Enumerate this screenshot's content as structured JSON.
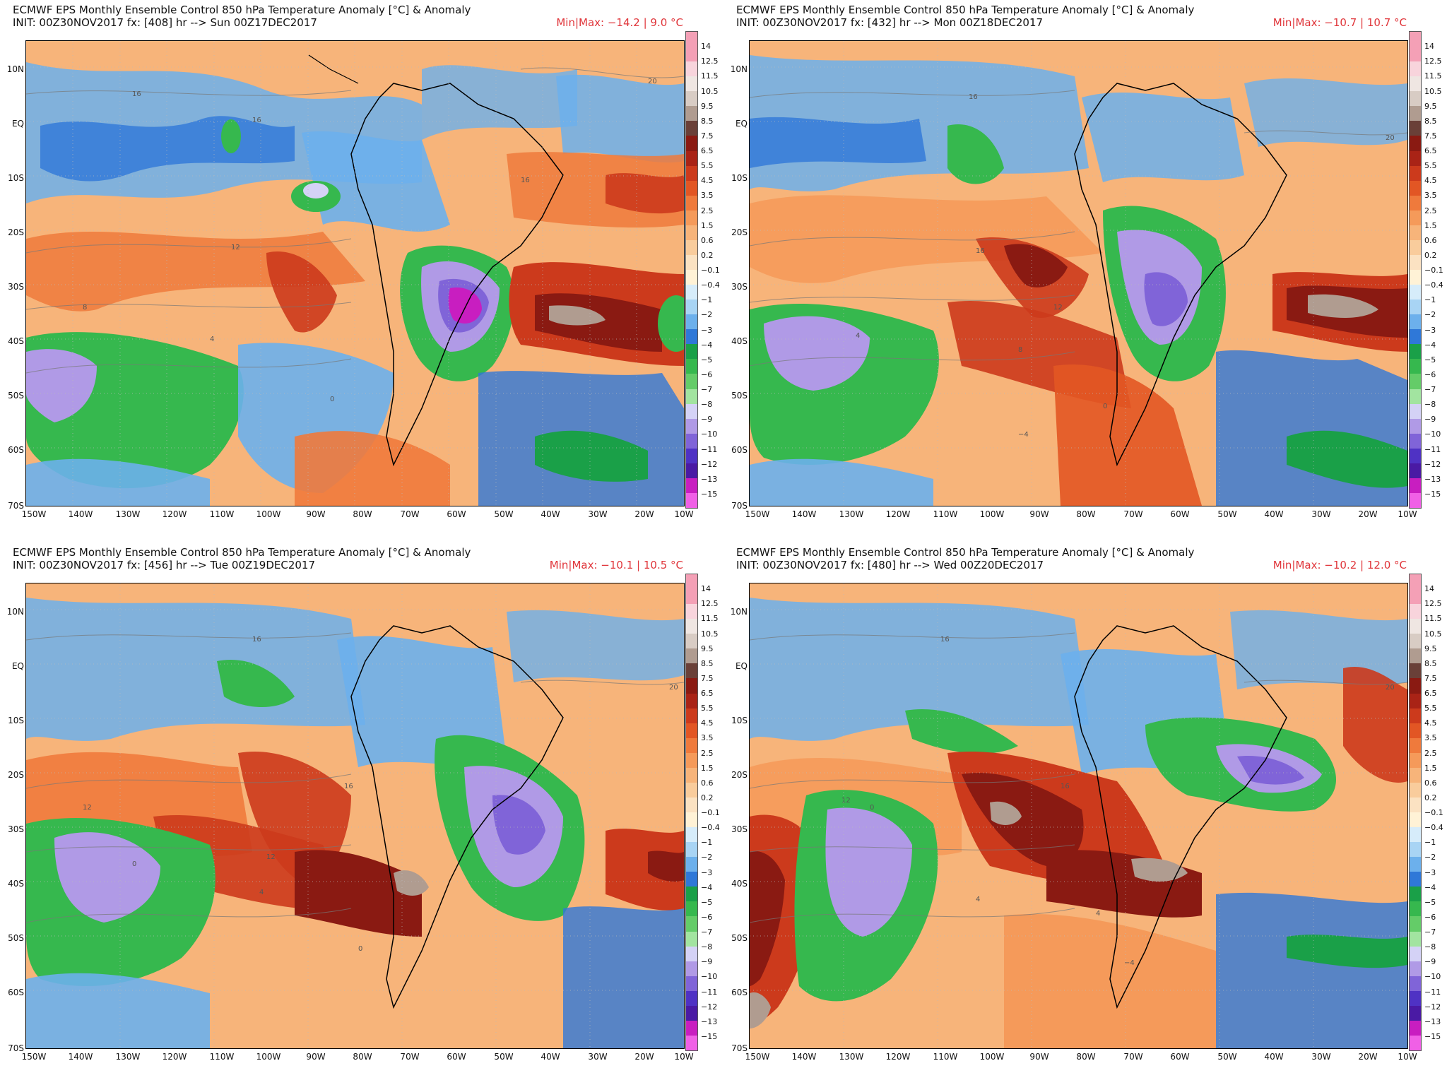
{
  "colorbar": {
    "labels": [
      "14",
      "12.5",
      "11.5",
      "10.5",
      "9.5",
      "8.5",
      "7.5",
      "6.5",
      "5.5",
      "4.5",
      "3.5",
      "2.5",
      "1.5",
      "0.6",
      "0.2",
      "−0.1",
      "−0.4",
      "−1",
      "−2",
      "−3",
      "−4",
      "−5",
      "−6",
      "−7",
      "−8",
      "−9",
      "−10",
      "−11",
      "−12",
      "−13",
      "−15"
    ],
    "colors": [
      "#f4a0b6",
      "#f8d4dc",
      "#efe6e2",
      "#d8ccc4",
      "#b09c90",
      "#6a4038",
      "#8a1a12",
      "#a92316",
      "#cc3a1c",
      "#e25624",
      "#ef7a3c",
      "#f59a5a",
      "#f7b47a",
      "#f9cc9c",
      "#fbe2c2",
      "#fff2d6",
      "#d6ecfa",
      "#a8d4f4",
      "#6cb0ec",
      "#2f78d8",
      "#1aa048",
      "#36b84e",
      "#64cc68",
      "#a2e4a0",
      "#d4d2f6",
      "#b09ae6",
      "#8064d8",
      "#4f32c4",
      "#4a1aa4",
      "#c81ec0",
      "#f060e6"
    ]
  },
  "axes": {
    "lat_labels": [
      "10N",
      "EQ",
      "10S",
      "20S",
      "30S",
      "40S",
      "50S",
      "60S",
      "70S"
    ],
    "lon_labels": [
      "150W",
      "140W",
      "130W",
      "120W",
      "110W",
      "100W",
      "90W",
      "80W",
      "70W",
      "60W",
      "50W",
      "40W",
      "30W",
      "20W",
      "10W"
    ]
  },
  "panels": [
    {
      "title": "ECMWF EPS Monthly Ensemble Control 850 hPa Temperature Anomaly [°C] & Anomaly",
      "init": "INIT: 00Z30NOV2017 fx: [408] hr --> Sun 00Z17DEC2017",
      "minmax": "Min|Max: −14.2 | 9.0 °C",
      "contour_labels": [
        "16",
        "16",
        "12",
        "8",
        "4",
        "0",
        "20",
        "16"
      ]
    },
    {
      "title": "ECMWF EPS Monthly Ensemble Control 850 hPa Temperature Anomaly [°C] & Anomaly",
      "init": "INIT: 00Z30NOV2017 fx: [432] hr --> Mon 00Z18DEC2017",
      "minmax": "Min|Max: −10.7 | 10.7 °C",
      "contour_labels": [
        "16",
        "16",
        "12",
        "8",
        "4",
        "0",
        "20",
        "−4"
      ]
    },
    {
      "title": "ECMWF EPS Monthly Ensemble Control 850 hPa Temperature Anomaly [°C] & Anomaly",
      "init": "INIT: 00Z30NOV2017 fx: [456] hr --> Tue 00Z19DEC2017",
      "minmax": "Min|Max: −10.1 | 10.5 °C",
      "contour_labels": [
        "16",
        "16",
        "12",
        "12",
        "0",
        "4",
        "20",
        "0"
      ]
    },
    {
      "title": "ECMWF EPS Monthly Ensemble Control 850 hPa Temperature Anomaly [°C] & Anomaly",
      "init": "INIT: 00Z30NOV2017 fx: [480] hr --> Wed 00Z20DEC2017",
      "minmax": "Min|Max: −10.2 | 12.0 °C",
      "contour_labels": [
        "16",
        "16",
        "12",
        "4",
        "0",
        "−4",
        "20",
        "4"
      ]
    }
  ]
}
